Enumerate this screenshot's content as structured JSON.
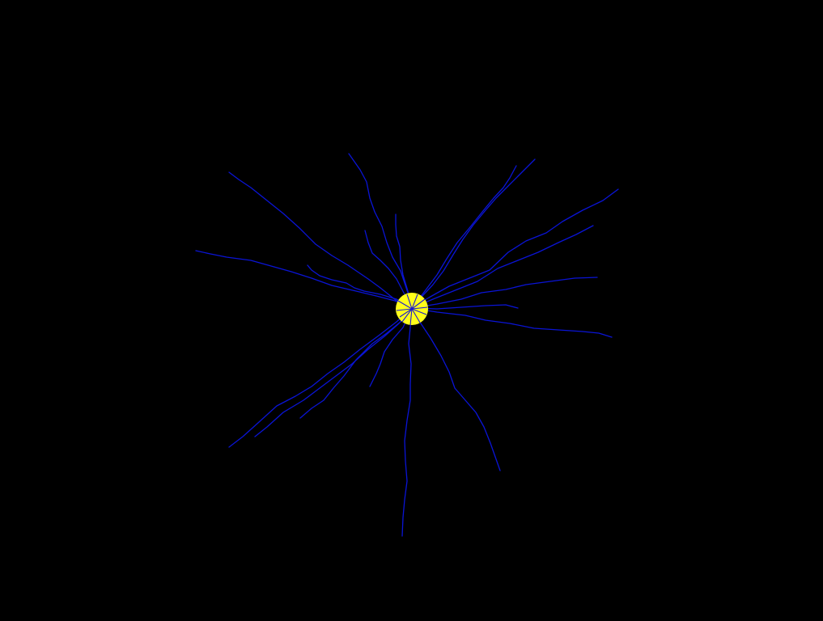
{
  "scene": {
    "background_color": "#000000",
    "dendrite_color": "#0a14d6",
    "soma_color": "#ffff1a",
    "soma_spoke_color": "#1a1ad0"
  },
  "soma": {
    "name": "soma"
  },
  "branches": [
    {
      "name": "dendrite-upper-left"
    },
    {
      "name": "dendrite-left"
    },
    {
      "name": "dendrite-left-short"
    },
    {
      "name": "dendrite-upper-center"
    },
    {
      "name": "dendrite-upper-center-inner"
    },
    {
      "name": "dendrite-upper-center-short"
    },
    {
      "name": "dendrite-upper-right-a"
    },
    {
      "name": "dendrite-upper-right-b"
    },
    {
      "name": "dendrite-right-top"
    },
    {
      "name": "dendrite-right-mid"
    },
    {
      "name": "dendrite-right-upper"
    },
    {
      "name": "dendrite-right-short"
    },
    {
      "name": "dendrite-right-lower"
    },
    {
      "name": "dendrite-lower-right"
    },
    {
      "name": "dendrite-bottom"
    },
    {
      "name": "dendrite-lower-left-a"
    },
    {
      "name": "dendrite-lower-left-b"
    },
    {
      "name": "dendrite-lower-left-c"
    },
    {
      "name": "dendrite-lower-left-short"
    }
  ]
}
